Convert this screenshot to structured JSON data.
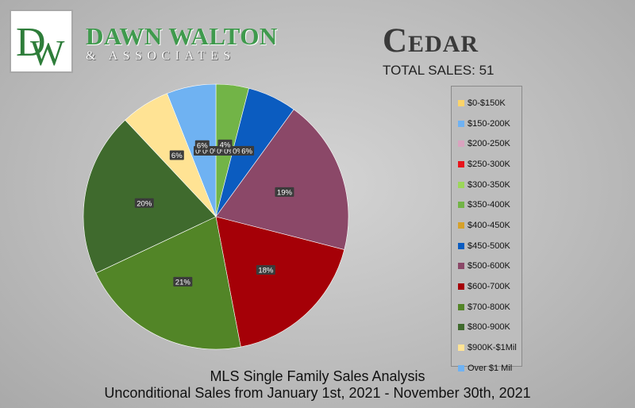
{
  "logo": {
    "monogram": "DW"
  },
  "brand": {
    "name": "DAWN WALTON",
    "subtitle": "& ASSOCIATES"
  },
  "header": {
    "city": "Cedar",
    "total_sales": "TOTAL SALES: 51"
  },
  "footer": {
    "line1": "MLS Single Family Sales Analysis",
    "line2": "Unconditional Sales from January 1st, 2021 - November 30th, 2021"
  },
  "colors": {
    "brand_green": "#3f9a4d",
    "logo_green": "#2e7d3a"
  },
  "chart_data": {
    "type": "pie",
    "title": "",
    "legend_position": "right",
    "labels_shown": [
      "0%",
      "0%",
      "0%",
      "0%",
      "0%",
      "4%",
      "0%",
      "6%",
      "19%",
      "18%",
      "21%",
      "20%",
      "6%",
      "6%"
    ],
    "series": [
      {
        "name": "$0-$150K",
        "value": 0,
        "color": "#fbd46a"
      },
      {
        "name": "$150-200K",
        "value": 0,
        "color": "#6fb2f2"
      },
      {
        "name": "$200-250K",
        "value": 0,
        "color": "#d9a3bf"
      },
      {
        "name": "$250-300K",
        "value": 0,
        "color": "#e8141c"
      },
      {
        "name": "$300-350K",
        "value": 0,
        "color": "#9bd75a"
      },
      {
        "name": "$350-400K",
        "value": 4,
        "color": "#72b447"
      },
      {
        "name": "$400-450K",
        "value": 0,
        "color": "#d6a12b"
      },
      {
        "name": "$450-500K",
        "value": 6,
        "color": "#0b5cc0"
      },
      {
        "name": "$500-600K",
        "value": 19,
        "color": "#8b4868"
      },
      {
        "name": "$600-700K",
        "value": 18,
        "color": "#a50007"
      },
      {
        "name": "$700-800K",
        "value": 21,
        "color": "#528527"
      },
      {
        "name": "$800-900K",
        "value": 20,
        "color": "#3f6a2d"
      },
      {
        "name": "$900K-$1Mil",
        "value": 6,
        "color": "#ffe394"
      },
      {
        "name": "Over $1 Mil",
        "value": 6,
        "color": "#6fb2f2"
      }
    ]
  }
}
